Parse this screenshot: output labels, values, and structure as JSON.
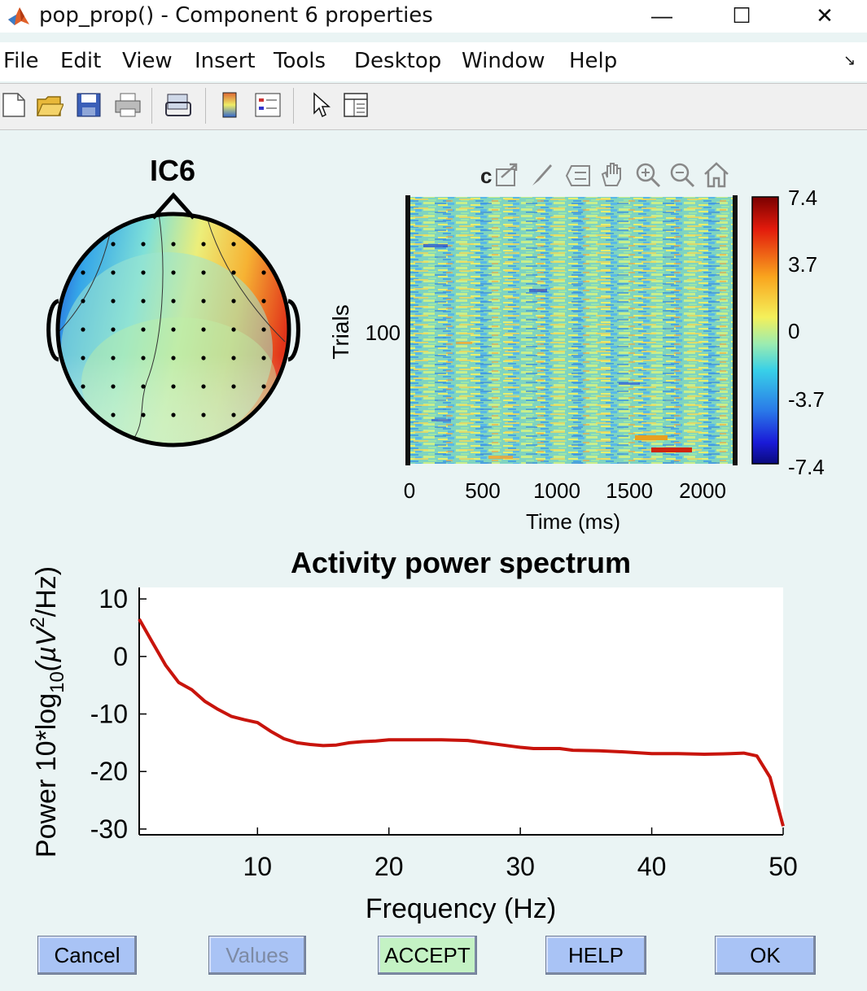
{
  "window": {
    "title": "pop_prop() - Component 6 properties",
    "controls": [
      "—",
      "☐",
      "✕"
    ]
  },
  "menu": [
    "File",
    "Edit",
    "View",
    "Insert",
    "Tools",
    "Desktop",
    "Window",
    "Help"
  ],
  "toolbar": {
    "icons": [
      "new-file-icon",
      "open-folder-icon",
      "save-icon",
      "print-icon",
      "link-plot-icon",
      "colorbar-icon",
      "legend-icon",
      "select-pointer-icon",
      "property-editor-icon"
    ]
  },
  "topomap": {
    "title": "IC6"
  },
  "erpimage": {
    "ylabel": "Trials",
    "ytick": "100",
    "xticks": [
      "0",
      "500",
      "1000",
      "1500",
      "2000"
    ],
    "xlabel": "Time (ms)",
    "colorbar_ticks": [
      "7.4",
      "3.7",
      "0",
      "-3.7",
      "-7.4"
    ],
    "axes_toolbar_icons": [
      "export-icon",
      "brush-icon",
      "datatip-icon",
      "pan-hand-icon",
      "zoom-in-icon",
      "zoom-out-icon",
      "home-icon"
    ]
  },
  "chart_data": {
    "type": "line",
    "title": "Activity power spectrum",
    "xlabel": "Frequency (Hz)",
    "ylabel": "Power 10*log10(µV2/Hz)",
    "ylabel_parts": {
      "main": "Power 10*log",
      "sub": "10",
      "mid": "(µV",
      "sup": "2",
      "end": "/Hz)"
    },
    "xlim": [
      1,
      50
    ],
    "ylim": [
      -31,
      12
    ],
    "xticks": [
      10,
      20,
      30,
      40,
      50
    ],
    "yticks": [
      10,
      0,
      -10,
      -20,
      -30
    ],
    "line_color": "#c8140c",
    "series": [
      {
        "x": [
          1,
          2,
          3,
          4,
          5,
          6,
          7,
          8,
          9,
          10,
          11,
          12,
          13,
          14,
          15,
          16,
          17,
          18,
          19,
          20,
          22,
          24,
          26,
          28,
          30,
          31,
          32,
          33,
          34,
          36,
          38,
          40,
          42,
          44,
          46,
          47,
          48,
          49,
          50
        ],
        "y": [
          6.5,
          2.5,
          -1.5,
          -4.5,
          -5.8,
          -7.8,
          -9.2,
          -10.4,
          -11.0,
          -11.5,
          -13.0,
          -14.3,
          -15.0,
          -15.3,
          -15.5,
          -15.4,
          -15.0,
          -14.8,
          -14.7,
          -14.5,
          -14.5,
          -14.5,
          -14.6,
          -15.2,
          -15.8,
          -16.0,
          -16.0,
          -16.0,
          -16.3,
          -16.4,
          -16.6,
          -16.9,
          -16.9,
          -17.0,
          -16.9,
          -16.8,
          -17.3,
          -21.0,
          -29.5
        ]
      }
    ]
  },
  "buttons": {
    "cancel": "Cancel",
    "values": "Values",
    "accept": "ACCEPT",
    "help": "HELP",
    "ok": "OK"
  },
  "colors": {
    "figure_bg": "#eaf4f4",
    "button_blue": "#a9c3f5",
    "button_green": "#c4f2c4",
    "line": "#c8140c"
  }
}
